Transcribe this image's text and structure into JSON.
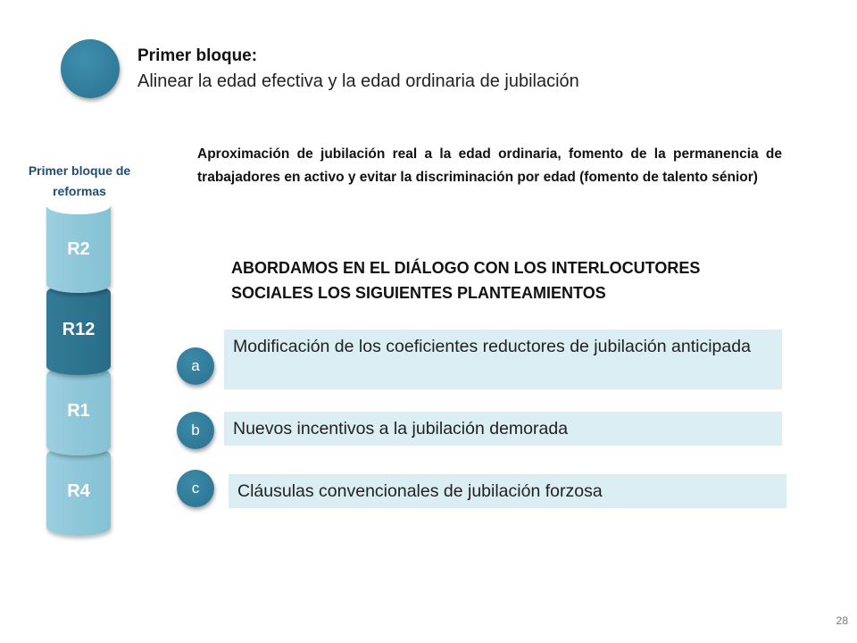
{
  "header": {
    "title": "Primer bloque:",
    "subtitle": "Alinear la edad efectiva y la edad ordinaria de jubilación"
  },
  "stack": {
    "label": "Primer bloque de reformas",
    "items": [
      "R2",
      "R12",
      "R1",
      "R4"
    ]
  },
  "intro": "Aproximación de jubilación real a la edad ordinaria, fomento de la permanencia de trabajadores en activo y evitar la discriminación por edad (fomento de talento sénior)",
  "section_heading": "ABORDAMOS EN EL DIÁLOGO CON LOS INTERLOCUTORES SOCIALES LOS SIGUIENTES PLANTEAMIENTOS",
  "items": [
    {
      "badge": "a",
      "text": "Modificación de los coeficientes reductores de jubilación anticipada"
    },
    {
      "badge": "b",
      "text": "Nuevos incentivos a la jubilación demorada"
    },
    {
      "badge": "c",
      "text": "Cláusulas convencionales de jubilación forzosa"
    }
  ],
  "page_number": "28",
  "colors": {
    "accent_dark": "#2e7490",
    "accent_light": "#8ec7d9",
    "item_background": "#dbeef4",
    "label_blue": "#1f4e6f"
  }
}
